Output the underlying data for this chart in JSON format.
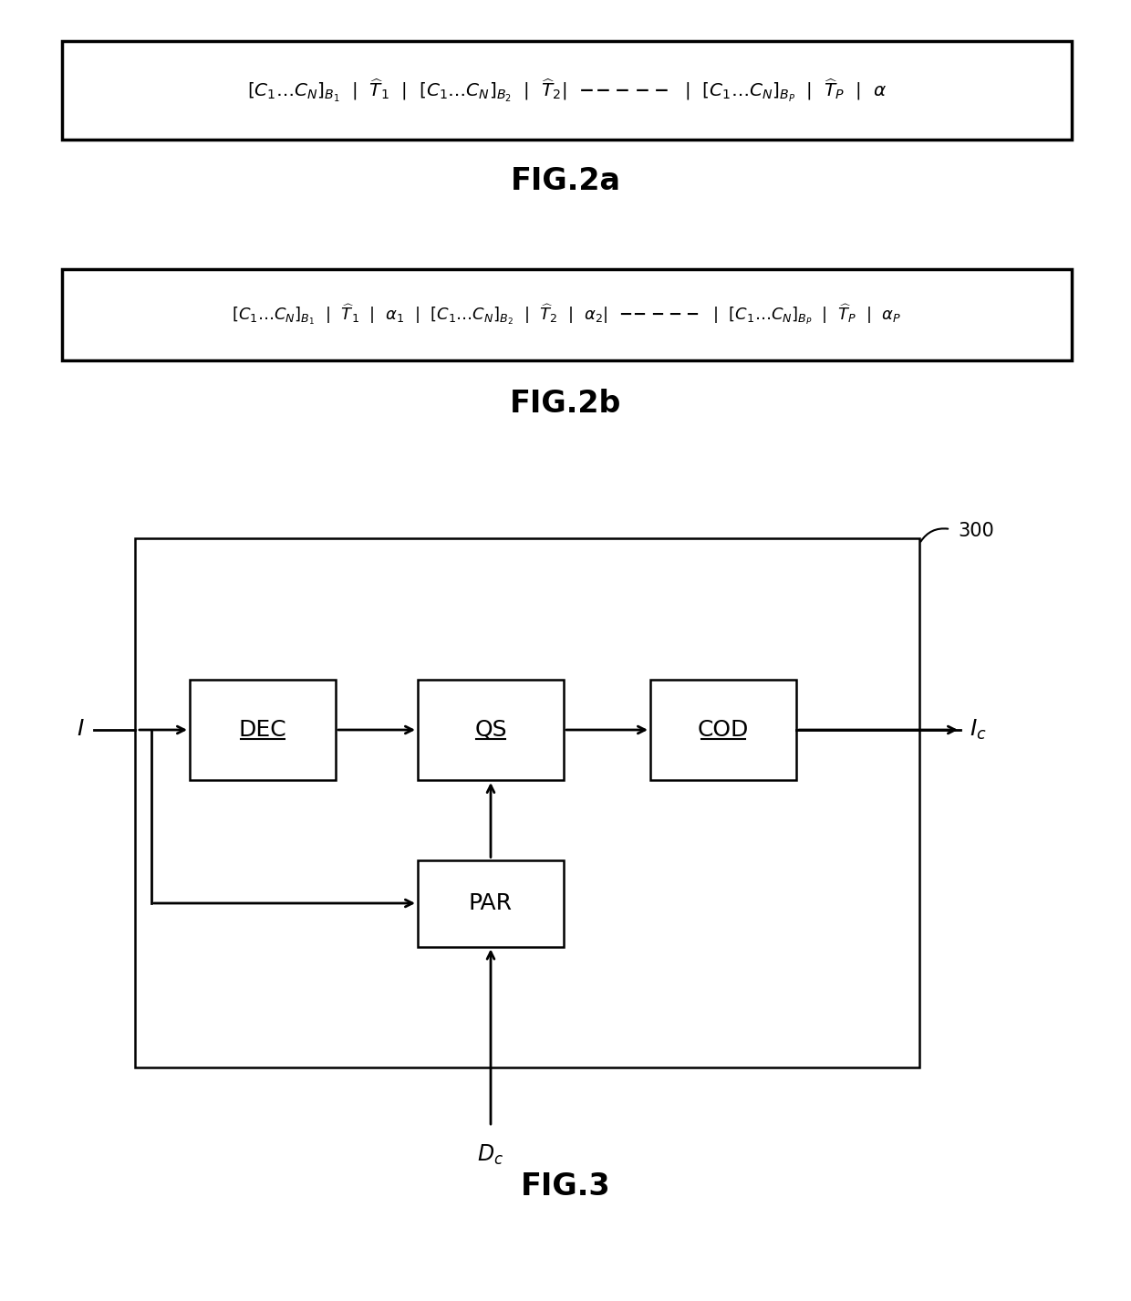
{
  "fig2a_label": "FIG.2a",
  "fig2b_label": "FIG.2b",
  "fig3_label": "FIG.3",
  "fig3_number": "300",
  "dec_label": "DEC",
  "qs_label": "QS",
  "cod_label": "COD",
  "par_label": "PAR",
  "input_label": "I",
  "output_label": "$I_c$",
  "dc_label": "$D_c$",
  "fig_width": 12.4,
  "fig_height": 14.26,
  "dpi": 100
}
